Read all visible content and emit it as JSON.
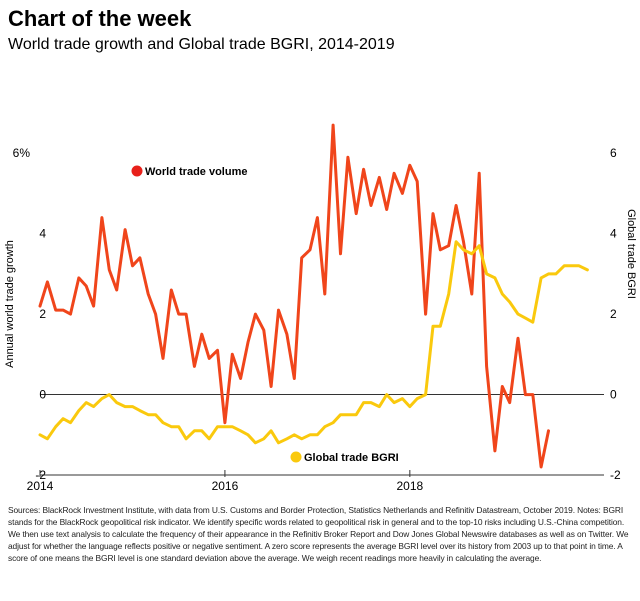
{
  "header": {
    "title": "Chart of the week",
    "subtitle": "World trade growth and Global trade BGRI, 2014-2019"
  },
  "chart_data": {
    "type": "line",
    "title": "Chart of the week",
    "subtitle": "World trade growth and Global trade BGRI, 2014-2019",
    "ylabel_left": "Annual world trade growth",
    "ylabel_right": "Global trade BGRI",
    "x_ticks": [
      "2014",
      "2016",
      "2018"
    ],
    "y_left_ticks": [
      "6%",
      "4",
      "2",
      "0",
      "-2"
    ],
    "y_right_ticks": [
      "6",
      "4",
      "2",
      "0",
      "-2"
    ],
    "xlim": [
      2014,
      2020.1
    ],
    "ylim_left": [
      -2,
      7
    ],
    "ylim_right": [
      -2,
      7
    ],
    "grid": false,
    "colors": {
      "world_trade": "#f0451b",
      "bgri": "#fac90d"
    },
    "series": [
      {
        "name": "World trade volume",
        "axis": "left",
        "x": [
          2014.0,
          2014.08,
          2014.17,
          2014.25,
          2014.33,
          2014.42,
          2014.5,
          2014.58,
          2014.67,
          2014.75,
          2014.83,
          2014.92,
          2015.0,
          2015.08,
          2015.17,
          2015.25,
          2015.33,
          2015.42,
          2015.5,
          2015.58,
          2015.67,
          2015.75,
          2015.83,
          2015.92,
          2016.0,
          2016.08,
          2016.17,
          2016.25,
          2016.33,
          2016.42,
          2016.5,
          2016.58,
          2016.67,
          2016.75,
          2016.83,
          2016.92,
          2017.0,
          2017.08,
          2017.17,
          2017.25,
          2017.33,
          2017.42,
          2017.5,
          2017.58,
          2017.67,
          2017.75,
          2017.83,
          2017.92,
          2018.0,
          2018.08,
          2018.17,
          2018.25,
          2018.33,
          2018.42,
          2018.5,
          2018.58,
          2018.67,
          2018.75,
          2018.83,
          2018.92,
          2019.0,
          2019.08,
          2019.17,
          2019.25,
          2019.33,
          2019.42,
          2019.5
        ],
        "y": [
          2.2,
          2.8,
          2.1,
          2.1,
          2.0,
          2.9,
          2.7,
          2.2,
          4.4,
          3.1,
          2.6,
          4.1,
          3.2,
          3.4,
          2.5,
          2.0,
          0.9,
          2.6,
          2.0,
          2.0,
          0.7,
          1.5,
          0.9,
          1.1,
          -0.7,
          1.0,
          0.4,
          1.3,
          2.0,
          1.6,
          0.2,
          2.1,
          1.5,
          0.4,
          3.4,
          3.6,
          4.4,
          2.5,
          6.7,
          3.5,
          5.9,
          4.5,
          5.6,
          4.7,
          5.4,
          4.6,
          5.5,
          5.0,
          5.7,
          5.3,
          2.0,
          4.5,
          3.6,
          3.7,
          4.7,
          3.8,
          2.5,
          5.5,
          0.7,
          -1.4,
          0.2,
          -0.2,
          1.4,
          0.0,
          0.0,
          -1.8,
          -0.9
        ]
      },
      {
        "name": "Global trade BGRI",
        "axis": "right",
        "x": [
          2014.0,
          2014.08,
          2014.17,
          2014.25,
          2014.33,
          2014.42,
          2014.5,
          2014.58,
          2014.67,
          2014.75,
          2014.83,
          2014.92,
          2015.0,
          2015.08,
          2015.17,
          2015.25,
          2015.33,
          2015.42,
          2015.5,
          2015.58,
          2015.67,
          2015.75,
          2015.83,
          2015.92,
          2016.0,
          2016.08,
          2016.17,
          2016.25,
          2016.33,
          2016.42,
          2016.5,
          2016.58,
          2016.67,
          2016.75,
          2016.83,
          2016.92,
          2017.0,
          2017.08,
          2017.17,
          2017.25,
          2017.33,
          2017.42,
          2017.5,
          2017.58,
          2017.67,
          2017.75,
          2017.83,
          2017.92,
          2018.0,
          2018.08,
          2018.17,
          2018.25,
          2018.33,
          2018.42,
          2018.5,
          2018.58,
          2018.67,
          2018.75,
          2018.83,
          2018.92,
          2019.0,
          2019.08,
          2019.17,
          2019.25,
          2019.33,
          2019.42,
          2019.5,
          2019.58,
          2019.67,
          2019.75,
          2019.83,
          2019.92
        ],
        "y": [
          -1.0,
          -1.1,
          -0.8,
          -0.6,
          -0.7,
          -0.4,
          -0.2,
          -0.3,
          -0.1,
          0.0,
          -0.2,
          -0.3,
          -0.3,
          -0.4,
          -0.5,
          -0.5,
          -0.7,
          -0.8,
          -0.8,
          -1.1,
          -0.9,
          -0.9,
          -1.1,
          -0.8,
          -0.8,
          -0.8,
          -0.9,
          -1.0,
          -1.2,
          -1.1,
          -0.9,
          -1.2,
          -1.1,
          -1.0,
          -1.1,
          -1.0,
          -1.0,
          -0.8,
          -0.7,
          -0.5,
          -0.5,
          -0.5,
          -0.2,
          -0.2,
          -0.3,
          0.0,
          -0.2,
          -0.1,
          -0.3,
          -0.1,
          0.0,
          1.7,
          1.7,
          2.5,
          3.8,
          3.6,
          3.5,
          3.7,
          3.0,
          2.9,
          2.5,
          2.3,
          2.0,
          1.9,
          1.8,
          2.9,
          3.0,
          3.0,
          3.2,
          3.2,
          3.2,
          3.1
        ]
      }
    ],
    "legend": [
      {
        "label": "World trade volume",
        "color": "#f0451b"
      },
      {
        "label": "Global trade BGRI",
        "color": "#fac90d"
      }
    ]
  },
  "source": "Sources: BlackRock Investment Institute, with data from U.S. Customs and Border Protection, Statistics Netherlands and Refinitiv Datastream, October 2019. Notes: BGRI stands for the BlackRock geopolitical risk indicator. We identify specific words related to geopolitical risk in general and to the top-10 risks including U.S.-China competition. We then use text analysis to calculate the frequency of their appearance in the Refinitiv Broker Report and Dow Jones Global Newswire databases as well as on Twitter. We adjust for whether the language reflects positive or negative sentiment. A zero score represents the average BGRI level over its history from 2003 up to that point in time. A score of one means the BGRI level is one standard deviation above the average. We weigh recent readings more heavily in calculating the average."
}
